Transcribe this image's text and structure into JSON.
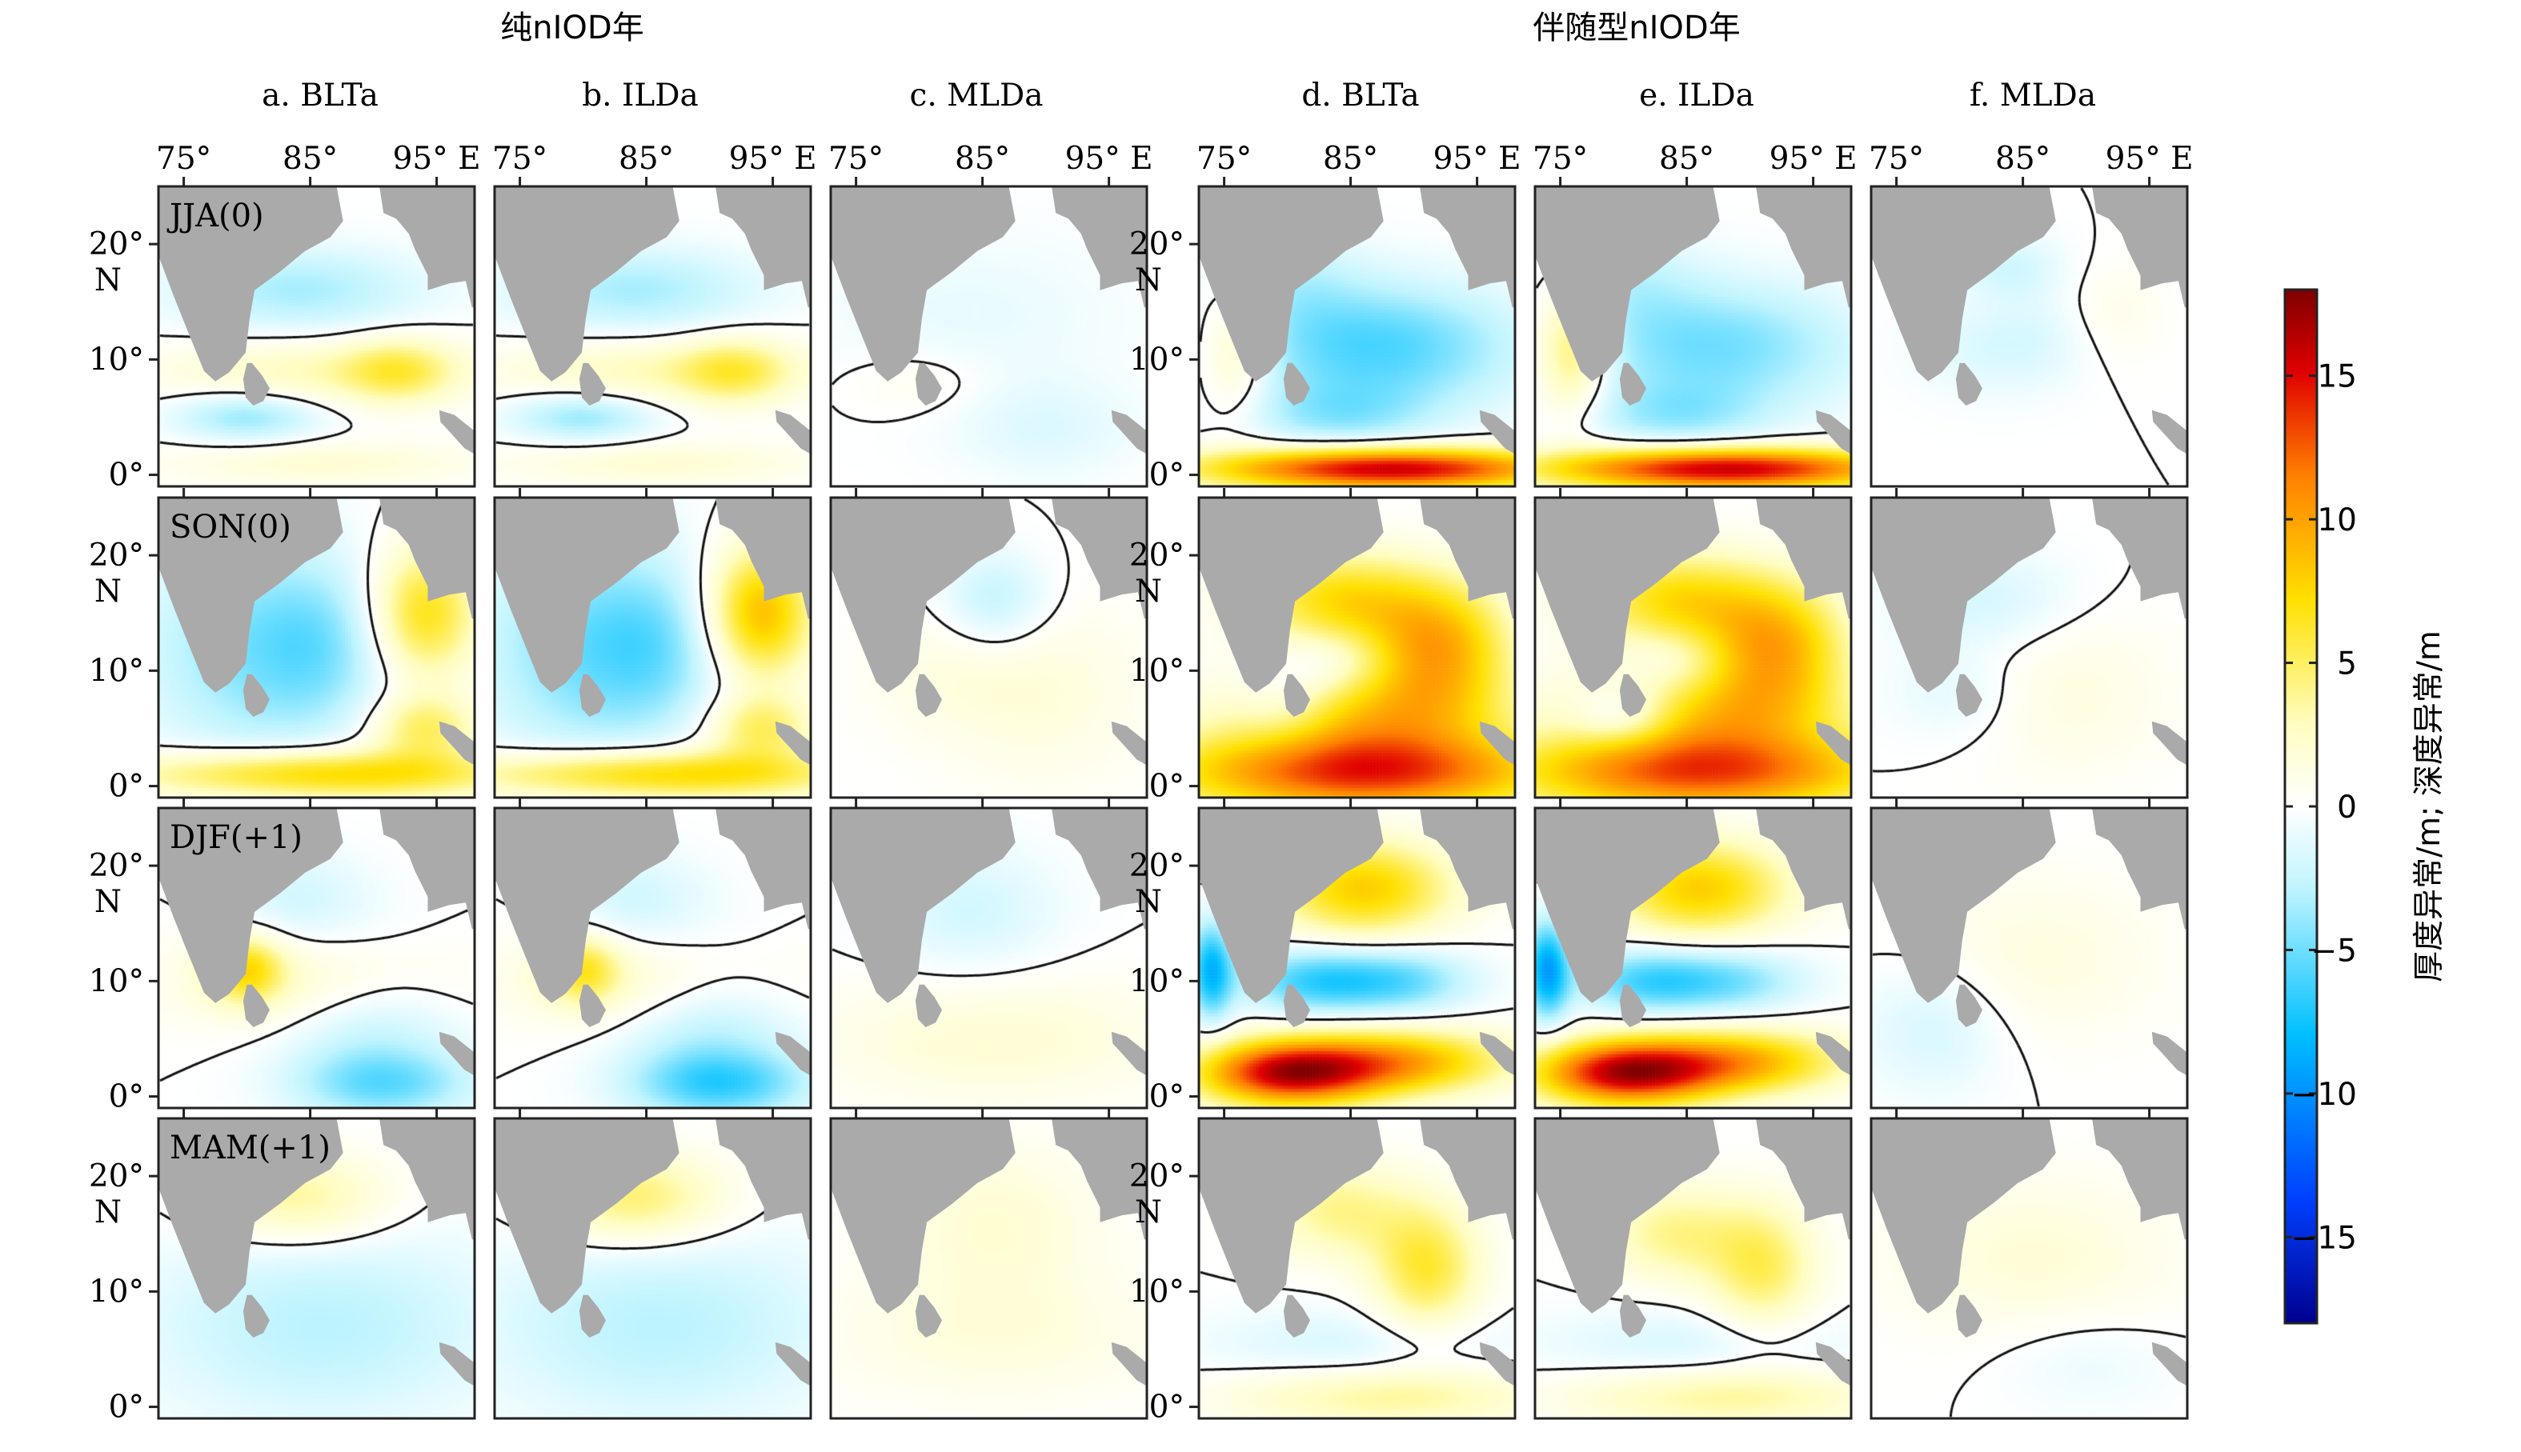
{
  "figure": {
    "group_titles": [
      "纯nIOD年",
      "伴随型nIOD年"
    ]
  },
  "chart_data": {
    "type": "heatmap",
    "columns": [
      {
        "id": "a",
        "title": "a. BLTa",
        "group": 0
      },
      {
        "id": "b",
        "title": "b. ILDa",
        "group": 0
      },
      {
        "id": "c",
        "title": "c. MLDa",
        "group": 0
      },
      {
        "id": "d",
        "title": "d. BLTa",
        "group": 1
      },
      {
        "id": "e",
        "title": "e. ILDa",
        "group": 1
      },
      {
        "id": "f",
        "title": "f. MLDa",
        "group": 1
      }
    ],
    "rows": [
      "JJA(0)",
      "SON(0)",
      "DJF(+1)",
      "MAM(+1)"
    ],
    "x_ticks": [
      {
        "value": 75,
        "label": "75°"
      },
      {
        "value": 85,
        "label": "85°"
      },
      {
        "value": 95,
        "label": "95° E"
      }
    ],
    "y_ticks": [
      {
        "value": 0,
        "label": "0°"
      },
      {
        "value": 10,
        "label": "10°"
      },
      {
        "value": 20,
        "label": "20°",
        "sub": "N"
      }
    ],
    "xlim": [
      73,
      98
    ],
    "ylim": [
      -1,
      25
    ],
    "colorbar": {
      "label": "厚度异常/m; 深度异常/m",
      "range": [
        -18,
        18
      ],
      "ticks": [
        {
          "value": 15,
          "label": "15"
        },
        {
          "value": 10,
          "label": "10"
        },
        {
          "value": 5,
          "label": "5"
        },
        {
          "value": 0,
          "label": "0"
        },
        {
          "value": -5,
          "label": "−5"
        },
        {
          "value": -10,
          "label": "−10"
        },
        {
          "value": -15,
          "label": "−15"
        }
      ],
      "colors": [
        "#00008f",
        "#0040ff",
        "#00c0ff",
        "#bff4ff",
        "#ffffff",
        "#fffdc0",
        "#ffe000",
        "#ff8000",
        "#e00000",
        "#800000"
      ]
    },
    "land_color": "#aaaaaa",
    "contour_level": 0,
    "fields": {
      "a": [
        {
          "blobs": [
            [
              84,
              16,
              7,
              2.6,
              -3.5
            ],
            [
              80,
              5,
              4,
              1.5,
              -4
            ],
            [
              86,
              9,
              9,
              2,
              3
            ],
            [
              92,
              9,
              3,
              2,
              4
            ],
            [
              86,
              1,
              9,
              1.4,
              2
            ]
          ]
        },
        {
          "blobs": [
            [
              80,
              12,
              6,
              7,
              -4
            ],
            [
              86,
              12,
              4,
              5,
              -3
            ],
            [
              94,
              15,
              3,
              4,
              7
            ],
            [
              86,
              1,
              11,
              1.5,
              8
            ],
            [
              94,
              5,
              3,
              2,
              5
            ]
          ]
        },
        {
          "blobs": [
            [
              86,
              10,
              8,
              3,
              3
            ],
            [
              80,
              11,
              2,
              2,
              6
            ],
            [
              84,
              17,
              4,
              3,
              -2
            ],
            [
              90,
              6,
              5,
              5,
              -3
            ],
            [
              91,
              1,
              5,
              2,
              -4
            ]
          ]
        },
        {
          "blobs": [
            [
              84,
              18,
              5,
              2.8,
              4
            ],
            [
              86,
              7,
              10,
              6,
              -3
            ]
          ]
        }
      ],
      "b": [
        {
          "blobs": [
            [
              84,
              16,
              7,
              2.6,
              -3.5
            ],
            [
              80,
              5,
              4,
              1.5,
              -4
            ],
            [
              86,
              9,
              9,
              2,
              3
            ],
            [
              92,
              9,
              3,
              2,
              4
            ],
            [
              86,
              1,
              9,
              1.4,
              2
            ]
          ]
        },
        {
          "blobs": [
            [
              80,
              12,
              6,
              7,
              -4.5
            ],
            [
              86,
              12,
              4,
              5,
              -3
            ],
            [
              94,
              15,
              3,
              4,
              9
            ],
            [
              86,
              1,
              11,
              1.5,
              8
            ],
            [
              94,
              5,
              3,
              2,
              5
            ]
          ]
        },
        {
          "blobs": [
            [
              86,
              10,
              8,
              3,
              3
            ],
            [
              80,
              11,
              2,
              2,
              5
            ],
            [
              84,
              17,
              4,
              3,
              -2
            ],
            [
              90,
              6,
              5,
              5,
              -3.5
            ],
            [
              91,
              1,
              5,
              2,
              -5
            ]
          ]
        },
        {
          "blobs": [
            [
              84,
              18,
              5,
              2.8,
              5
            ],
            [
              86,
              7,
              10,
              6,
              -3
            ]
          ]
        }
      ],
      "c": [
        {
          "blobs": [
            [
              84,
              14,
              9,
              5,
              -1
            ],
            [
              90,
              4,
              5,
              3,
              -1.5
            ],
            [
              80,
              8,
              4,
              2,
              1
            ]
          ]
        },
        {
          "blobs": [
            [
              86,
              16,
              3,
              3,
              -3
            ],
            [
              82,
              10,
              5,
              4,
              1
            ],
            [
              90,
              8,
              6,
              6,
              1.5
            ]
          ]
        },
        {
          "blobs": [
            [
              86,
              5,
              10,
              4,
              2
            ],
            [
              84,
              16,
              5,
              4,
              -2
            ]
          ]
        },
        {
          "blobs": [
            [
              86,
              16,
              6,
              5,
              2
            ],
            [
              86,
              6,
              10,
              4,
              1.5
            ]
          ]
        }
      ],
      "d": [
        {
          "blobs": [
            [
              87,
              11,
              8,
              4,
              -6
            ],
            [
              80,
              17,
              4,
              3,
              -2
            ],
            [
              88,
              0.5,
              10,
              1.3,
              16
            ],
            [
              76,
              11,
              2,
              4,
              4
            ],
            [
              84,
              5,
              5,
              2,
              -3
            ]
          ]
        },
        {
          "blobs": [
            [
              86,
              1,
              11,
              2.5,
              13
            ],
            [
              84,
              16,
              5,
              3,
              7
            ],
            [
              92,
              12,
              4,
              4,
              9
            ],
            [
              80,
              7,
              3,
              3,
              -3
            ],
            [
              84,
              11,
              3,
              2,
              -2
            ],
            [
              86,
              6,
              8,
              3,
              7
            ]
          ]
        },
        {
          "blobs": [
            [
              86,
              18,
              5,
              3,
              8
            ],
            [
              82,
              10,
              4,
              2,
              -6
            ],
            [
              89,
              10,
              4,
              2,
              -5
            ],
            [
              80,
              2,
              5,
              2,
              15
            ],
            [
              89,
              3,
              6,
              2,
              9
            ],
            [
              74,
              11,
              1.2,
              3,
              -8
            ]
          ]
        },
        {
          "blobs": [
            [
              84,
              17,
              4,
              3,
              4
            ],
            [
              91,
              12,
              3,
              4,
              6
            ],
            [
              86,
              5,
              9,
              2.5,
              -2
            ],
            [
              88,
              1,
              9,
              2,
              4
            ]
          ]
        }
      ],
      "e": [
        {
          "blobs": [
            [
              87,
              11,
              8,
              4,
              -5
            ],
            [
              80,
              17,
              4,
              3,
              -2
            ],
            [
              88,
              0.5,
              10,
              1.3,
              16
            ],
            [
              76,
              11,
              2,
              4,
              6
            ],
            [
              84,
              5,
              5,
              2,
              -3
            ]
          ]
        },
        {
          "blobs": [
            [
              86,
              1,
              11,
              2.5,
              12
            ],
            [
              84,
              16,
              5,
              3,
              7
            ],
            [
              92,
              12,
              4,
              4,
              9
            ],
            [
              80,
              6,
              3,
              2,
              -5
            ],
            [
              84,
              11,
              3,
              2,
              -2
            ],
            [
              86,
              6,
              8,
              3,
              7
            ]
          ]
        },
        {
          "blobs": [
            [
              86,
              18,
              5,
              3,
              8
            ],
            [
              82,
              10,
              4,
              2,
              -6
            ],
            [
              89,
              10,
              4,
              2,
              -4
            ],
            [
              80,
              2,
              5,
              2,
              15
            ],
            [
              89,
              3,
              6,
              2,
              9
            ],
            [
              74,
              11,
              1.2,
              3,
              -9
            ]
          ]
        },
        {
          "blobs": [
            [
              84,
              15,
              4,
              3,
              4
            ],
            [
              91,
              12,
              3,
              4,
              5
            ],
            [
              86,
              5,
              9,
              2.5,
              -2
            ],
            [
              88,
              1,
              9,
              2,
              4
            ]
          ]
        }
      ],
      "f": [
        {
          "blobs": [
            [
              82,
              11,
              4,
              3,
              -1.5
            ],
            [
              87,
              12,
              3,
              3,
              -1
            ],
            [
              84,
              18,
              3,
              2,
              -2
            ],
            [
              92,
              14,
              3,
              3,
              1
            ]
          ]
        },
        {
          "blobs": [
            [
              82,
              16,
              5,
              3,
              -2
            ],
            [
              80,
              8,
              4,
              3,
              -1.5
            ],
            [
              88,
              8,
              6,
              5,
              1.5
            ]
          ]
        },
        {
          "blobs": [
            [
              78,
              6,
              4,
              4,
              -2
            ],
            [
              86,
              12,
              7,
              5,
              1.5
            ]
          ]
        },
        {
          "blobs": [
            [
              86,
              13,
              8,
              5,
              1.8
            ],
            [
              90,
              4,
              5,
              3,
              -1
            ]
          ]
        }
      ]
    }
  }
}
